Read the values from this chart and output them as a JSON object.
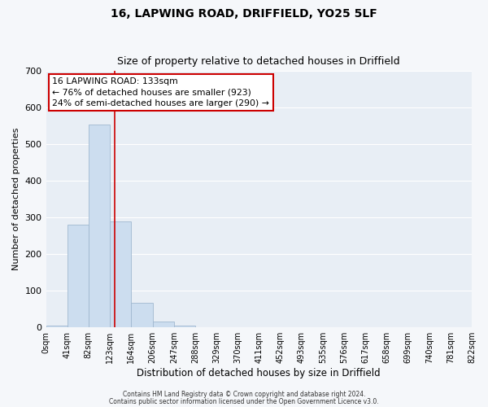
{
  "title1": "16, LAPWING ROAD, DRIFFIELD, YO25 5LF",
  "title2": "Size of property relative to detached houses in Driffield",
  "xlabel": "Distribution of detached houses by size in Driffield",
  "ylabel": "Number of detached properties",
  "bar_edges": [
    0,
    41,
    82,
    123,
    164,
    206,
    247,
    288,
    329,
    370,
    411,
    452,
    493,
    535,
    576,
    617,
    658,
    699,
    740,
    781,
    822
  ],
  "bar_heights": [
    5,
    280,
    555,
    290,
    67,
    15,
    5,
    0,
    0,
    0,
    0,
    0,
    0,
    0,
    0,
    0,
    0,
    0,
    0,
    0
  ],
  "bar_color": "#ccddef",
  "bar_edgecolor": "#a0b8d0",
  "vline_x": 133,
  "vline_color": "#cc0000",
  "ylim": [
    0,
    700
  ],
  "xlim": [
    0,
    822
  ],
  "xtick_labels": [
    "0sqm",
    "41sqm",
    "82sqm",
    "123sqm",
    "164sqm",
    "206sqm",
    "247sqm",
    "288sqm",
    "329sqm",
    "370sqm",
    "411sqm",
    "452sqm",
    "493sqm",
    "535sqm",
    "576sqm",
    "617sqm",
    "658sqm",
    "699sqm",
    "740sqm",
    "781sqm",
    "822sqm"
  ],
  "xtick_positions": [
    0,
    41,
    82,
    123,
    164,
    206,
    247,
    288,
    329,
    370,
    411,
    452,
    493,
    535,
    576,
    617,
    658,
    699,
    740,
    781,
    822
  ],
  "annotation_line1": "16 LAPWING ROAD: 133sqm",
  "annotation_line2": "← 76% of detached houses are smaller (923)",
  "annotation_line3": "24% of semi-detached houses are larger (290) →",
  "annotation_box_facecolor": "#ffffff",
  "annotation_box_edgecolor": "#cc0000",
  "footer1": "Contains HM Land Registry data © Crown copyright and database right 2024.",
  "footer2": "Contains public sector information licensed under the Open Government Licence v3.0.",
  "plot_bg_color": "#e8eef5",
  "fig_bg_color": "#f5f7fa",
  "grid_color": "#ffffff",
  "title1_fontsize": 10,
  "title2_fontsize": 9,
  "tick_fontsize": 7,
  "ylabel_fontsize": 8,
  "xlabel_fontsize": 8.5,
  "annotation_fontsize": 7.8,
  "footer_fontsize": 5.5
}
